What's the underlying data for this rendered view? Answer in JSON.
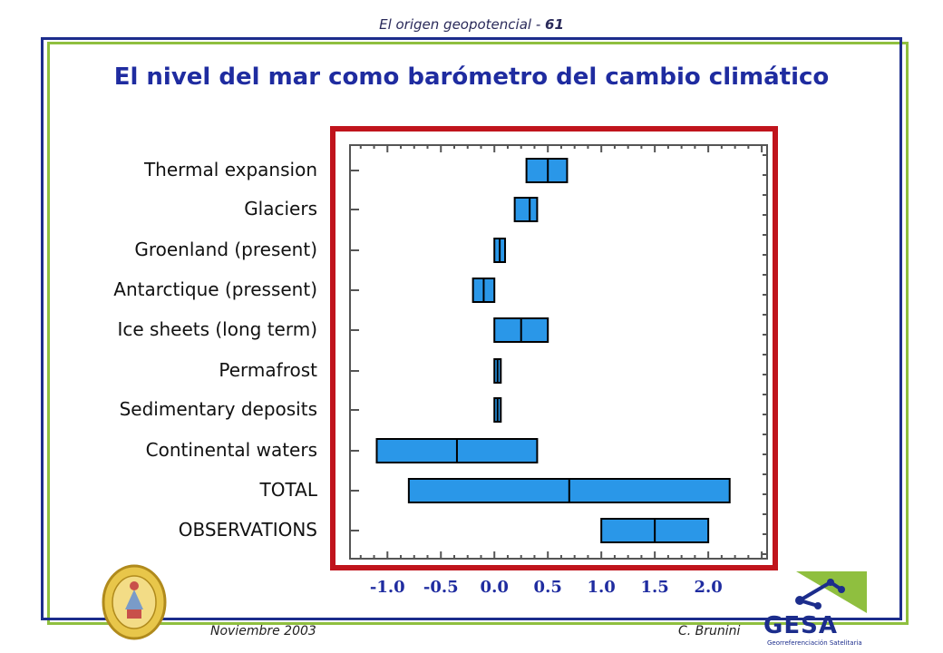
{
  "header": {
    "text": "El origen geopotencial - ",
    "page": "61"
  },
  "title": "El nivel del mar como barómetro del cambio climático",
  "footer": {
    "date": "Noviembre 2003",
    "author": "C. Brunini"
  },
  "logo": {
    "name": "GESA",
    "subtitle": "Georreferenciación Satelitaria",
    "colors": [
      "#1c2d8c",
      "#8fbf3f"
    ]
  },
  "colors": {
    "bar_fill": "#2a97e8",
    "highlight_border": "#c0141c",
    "title": "#1f2ca0"
  },
  "chart_data": {
    "type": "bar",
    "orientation": "horizontal",
    "title": "",
    "x_tick_labels": [
      "-1.0",
      "-0.5",
      "0.0",
      "0.5",
      "1.0",
      "1.5",
      "2.0"
    ],
    "xlim": [
      -1.35,
      2.55
    ],
    "categories": [
      "Thermal expansion",
      "Glaciers",
      "Groenland (present)",
      "Antarctique (pressent)",
      "Ice sheets (long term)",
      "Permafrost",
      "Sedimentary deposits",
      "Continental waters",
      "TOTAL",
      "OBSERVATIONS"
    ],
    "ranges": [
      {
        "low": 0.3,
        "mid": 0.5,
        "high": 0.68
      },
      {
        "low": 0.19,
        "mid": 0.33,
        "high": 0.4
      },
      {
        "low": 0.0,
        "mid": 0.05,
        "high": 0.1
      },
      {
        "low": -0.2,
        "mid": -0.1,
        "high": 0.0
      },
      {
        "low": 0.0,
        "mid": 0.25,
        "high": 0.5
      },
      {
        "low": 0.0,
        "mid": 0.03,
        "high": 0.06
      },
      {
        "low": 0.0,
        "mid": 0.03,
        "high": 0.06
      },
      {
        "low": -1.1,
        "mid": -0.35,
        "high": 0.4
      },
      {
        "low": -0.8,
        "mid": 0.7,
        "high": 2.2
      },
      {
        "low": 1.0,
        "mid": 1.5,
        "high": 2.0
      }
    ]
  }
}
